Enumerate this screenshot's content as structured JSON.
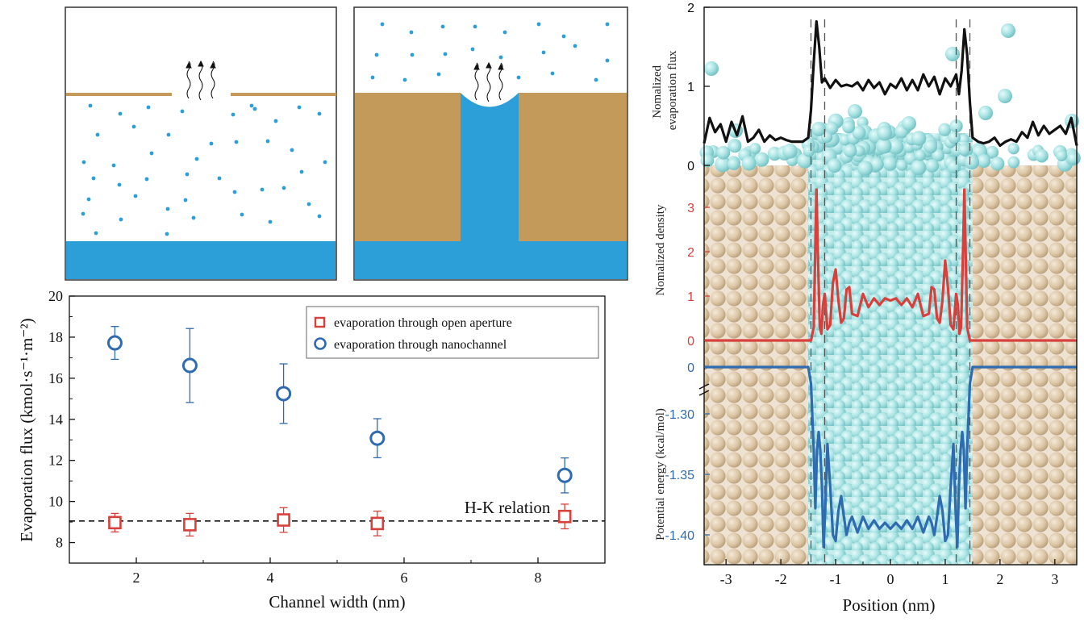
{
  "chart_data": [
    {
      "type": "scatter",
      "xlabel": "Channel width (nm)",
      "ylabel": "Evaporation flux (kmol·s⁻¹·m⁻²)",
      "xlim": [
        1,
        9
      ],
      "ylim": [
        7,
        20
      ],
      "xticks": [
        "2",
        "4",
        "6",
        "8"
      ],
      "yticks": [
        "8",
        "10",
        "12",
        "14",
        "16",
        "18",
        "20"
      ],
      "legend_position": "top-right",
      "series": [
        {
          "name": "evaporation through open aperture",
          "marker": "square",
          "color": "#d8403c",
          "x": [
            1.68,
            2.8,
            4.2,
            5.6,
            8.4
          ],
          "y": [
            8.97,
            8.87,
            9.1,
            8.93,
            9.27
          ],
          "err": [
            0.45,
            0.55,
            0.6,
            0.6,
            0.6
          ]
        },
        {
          "name": "evaporation through nanochannel",
          "marker": "circle",
          "color": "#2f6bb0",
          "x": [
            1.68,
            2.8,
            4.2,
            5.6,
            8.4
          ],
          "y": [
            17.72,
            16.62,
            15.25,
            13.08,
            11.27
          ],
          "err": [
            0.8,
            1.8,
            1.45,
            0.95,
            0.85
          ]
        }
      ],
      "reference_line": {
        "y": 9.05,
        "label": "H-K relation"
      }
    },
    {
      "type": "line",
      "xlabel": "Position (nm)",
      "xlim": [
        -3.4,
        3.4
      ],
      "xticks": [
        "-3",
        "-2",
        "-1",
        "0",
        "1",
        "2",
        "3"
      ],
      "panels": [
        {
          "ylabel": "Nomalized\nevaporation flux",
          "yticks": [
            "0",
            "1",
            "2"
          ],
          "ylim": [
            0,
            2
          ],
          "color": "#111111",
          "x": [
            -3.4,
            -3.3,
            -3.2,
            -3.1,
            -3.0,
            -2.9,
            -2.8,
            -2.7,
            -2.6,
            -2.5,
            -2.4,
            -2.3,
            -2.2,
            -2.1,
            -2.0,
            -1.9,
            -1.8,
            -1.7,
            -1.6,
            -1.5,
            -1.45,
            -1.4,
            -1.35,
            -1.3,
            -1.25,
            -1.2,
            -1.1,
            -1.0,
            -0.9,
            -0.8,
            -0.7,
            -0.6,
            -0.5,
            -0.4,
            -0.3,
            -0.2,
            -0.1,
            0.0,
            0.1,
            0.2,
            0.3,
            0.4,
            0.5,
            0.6,
            0.7,
            0.8,
            0.9,
            1.0,
            1.1,
            1.2,
            1.25,
            1.3,
            1.35,
            1.4,
            1.45,
            1.5,
            1.6,
            1.7,
            1.8,
            1.9,
            2.0,
            2.1,
            2.2,
            2.3,
            2.4,
            2.5,
            2.6,
            2.7,
            2.8,
            2.9,
            3.0,
            3.1,
            3.2,
            3.3,
            3.4
          ],
          "y": [
            0.28,
            0.6,
            0.42,
            0.52,
            0.3,
            0.55,
            0.38,
            0.62,
            0.3,
            0.35,
            0.45,
            0.3,
            0.38,
            0.32,
            0.35,
            0.32,
            0.3,
            0.3,
            0.3,
            0.35,
            0.7,
            1.3,
            1.82,
            1.5,
            1.05,
            1.1,
            0.98,
            1.08,
            1.0,
            1.02,
            1.0,
            1.05,
            0.95,
            1.08,
            0.98,
            1.05,
            0.9,
            1.03,
            0.98,
            1.1,
            0.95,
            1.08,
            0.95,
            1.15,
            1.0,
            1.12,
            0.9,
            1.1,
            1.0,
            1.15,
            0.9,
            1.2,
            1.72,
            1.4,
            0.8,
            0.35,
            0.3,
            0.28,
            0.3,
            0.35,
            0.25,
            0.3,
            0.33,
            0.3,
            0.42,
            0.35,
            0.55,
            0.38,
            0.5,
            0.4,
            0.45,
            0.5,
            0.4,
            0.6,
            0.25
          ]
        },
        {
          "ylabel": "Nomalized density",
          "yticks": [
            "0",
            "1",
            "2",
            "3"
          ],
          "ylim": [
            0,
            3.5
          ],
          "color": "#d8403c",
          "x": [
            -3.4,
            -1.5,
            -1.45,
            -1.4,
            -1.38,
            -1.35,
            -1.32,
            -1.29,
            -1.26,
            -1.23,
            -1.2,
            -1.15,
            -1.1,
            -1.05,
            -1.0,
            -0.95,
            -0.9,
            -0.85,
            -0.8,
            -0.75,
            -0.7,
            -0.6,
            -0.5,
            -0.4,
            -0.3,
            -0.2,
            -0.1,
            0.0,
            0.1,
            0.2,
            0.3,
            0.4,
            0.5,
            0.6,
            0.7,
            0.75,
            0.8,
            0.85,
            0.9,
            0.95,
            1.0,
            1.05,
            1.1,
            1.15,
            1.2,
            1.23,
            1.26,
            1.29,
            1.32,
            1.35,
            1.38,
            1.4,
            1.45,
            1.5,
            3.4
          ],
          "y": [
            0,
            0,
            0,
            0.3,
            1.5,
            3.4,
            1.8,
            0.3,
            0.15,
            0.8,
            1.05,
            0.25,
            0.35,
            1.3,
            1.6,
            0.9,
            0.4,
            0.5,
            1.15,
            1.2,
            0.6,
            0.55,
            1.05,
            0.75,
            0.95,
            0.8,
            0.95,
            0.9,
            0.95,
            0.8,
            0.95,
            0.75,
            1.05,
            0.55,
            0.6,
            1.2,
            1.15,
            0.5,
            0.4,
            0.9,
            1.8,
            1.2,
            0.35,
            0.25,
            1.05,
            0.8,
            0.15,
            0.3,
            1.8,
            3.4,
            1.5,
            0.3,
            0,
            0,
            0
          ]
        },
        {
          "ylabel": "Potential energy (kcal/mol)",
          "yticks": [
            "0",
            "-1.30",
            "-1.35",
            "-1.40"
          ],
          "axis_break": true,
          "color": "#2f6bb0",
          "x": [
            -3.4,
            -1.5,
            -1.45,
            -1.4,
            -1.37,
            -1.34,
            -1.31,
            -1.28,
            -1.25,
            -1.22,
            -1.19,
            -1.15,
            -1.1,
            -1.05,
            -1.0,
            -0.95,
            -0.9,
            -0.85,
            -0.8,
            -0.75,
            -0.7,
            -0.6,
            -0.5,
            -0.4,
            -0.3,
            -0.2,
            -0.1,
            0.0,
            0.1,
            0.2,
            0.3,
            0.4,
            0.5,
            0.6,
            0.7,
            0.75,
            0.8,
            0.85,
            0.9,
            0.95,
            1.0,
            1.05,
            1.1,
            1.15,
            1.19,
            1.22,
            1.25,
            1.28,
            1.31,
            1.34,
            1.37,
            1.4,
            1.45,
            1.5,
            3.4
          ],
          "y": [
            0,
            0,
            -1.275,
            -1.33,
            -1.378,
            -1.33,
            -1.315,
            -1.33,
            -1.36,
            -1.41,
            -1.38,
            -1.325,
            -1.36,
            -1.4,
            -1.405,
            -1.38,
            -1.368,
            -1.385,
            -1.4,
            -1.39,
            -1.385,
            -1.398,
            -1.385,
            -1.395,
            -1.388,
            -1.395,
            -1.39,
            -1.395,
            -1.39,
            -1.395,
            -1.388,
            -1.395,
            -1.385,
            -1.398,
            -1.385,
            -1.39,
            -1.4,
            -1.385,
            -1.368,
            -1.38,
            -1.405,
            -1.4,
            -1.36,
            -1.325,
            -1.38,
            -1.41,
            -1.36,
            -1.33,
            -1.315,
            -1.33,
            -1.378,
            -1.33,
            -1.275,
            0,
            0
          ]
        }
      ]
    }
  ]
}
